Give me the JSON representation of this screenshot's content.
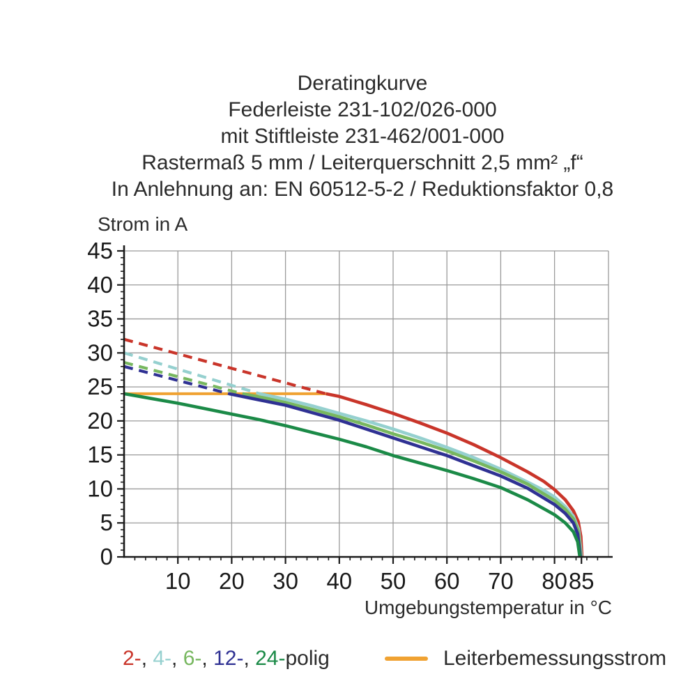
{
  "chart_data": {
    "type": "line",
    "title_lines": [
      "Deratingkurve",
      "Federleiste 231-102/026-000",
      "mit Stiftleiste 231-462/001-000",
      "Rastermaß 5 mm / Leiterquerschnitt 2,5 mm² „f“",
      "In Anlehnung an: EN 60512-5-2 / Reduktionsfaktor 0,8"
    ],
    "xlabel": "Umgebungstemperatur in °C",
    "ylabel": "Strom in A",
    "xlim": [
      0,
      90
    ],
    "ylim": [
      0,
      45
    ],
    "x_major_ticks": [
      10,
      20,
      30,
      40,
      50,
      60,
      70,
      80,
      85
    ],
    "x_gridlines": [
      10,
      20,
      30,
      40,
      50,
      60,
      70,
      80
    ],
    "x_minor_tick_step": 2,
    "y_major_ticks": [
      0,
      5,
      10,
      15,
      20,
      25,
      30,
      35,
      40,
      45
    ],
    "y_gridlines": [
      5,
      10,
      15,
      20,
      25,
      30,
      35,
      40
    ],
    "y_minor_tick_step": 1,
    "grid": true,
    "colors": {
      "grid": "#9a9a9a",
      "axis": "#1a1a1a",
      "tick_text": "#1a1a1a"
    },
    "reference_line": {
      "label": "Leiterbemessungsstrom",
      "color": "#f0a232",
      "value": 24,
      "x_start": 0,
      "x_end": 37.5
    },
    "series": [
      {
        "name": "2-polig",
        "legend_token": "2-",
        "color": "#c9352a",
        "dashed": [
          [
            0,
            32
          ],
          [
            37.5,
            24
          ]
        ],
        "solid": [
          [
            37.5,
            24
          ],
          [
            40,
            23.6
          ],
          [
            45,
            22.4
          ],
          [
            50,
            21.1
          ],
          [
            55,
            19.7
          ],
          [
            60,
            18.2
          ],
          [
            65,
            16.5
          ],
          [
            70,
            14.6
          ],
          [
            75,
            12.5
          ],
          [
            78,
            11.1
          ],
          [
            80,
            9.9
          ],
          [
            82,
            8.4
          ],
          [
            83.5,
            6.8
          ],
          [
            84.4,
            5.2
          ],
          [
            84.9,
            3
          ],
          [
            85.1,
            0
          ]
        ]
      },
      {
        "name": "4-polig",
        "legend_token": "4-",
        "color": "#95d0cf",
        "dashed": [
          [
            0,
            30
          ],
          [
            25.2,
            24
          ]
        ],
        "solid": [
          [
            25.2,
            24
          ],
          [
            30,
            23.2
          ],
          [
            35,
            22.2
          ],
          [
            40,
            21.1
          ],
          [
            45,
            20.0
          ],
          [
            50,
            18.8
          ],
          [
            55,
            17.5
          ],
          [
            60,
            16.1
          ],
          [
            65,
            14.6
          ],
          [
            70,
            12.9
          ],
          [
            75,
            11.0
          ],
          [
            78,
            9.8
          ],
          [
            80,
            8.8
          ],
          [
            82,
            7.4
          ],
          [
            83.5,
            6.0
          ],
          [
            84.5,
            4.0
          ],
          [
            85,
            0
          ]
        ]
      },
      {
        "name": "6-polig",
        "legend_token": "6-",
        "color": "#77b75f",
        "dashed": [
          [
            0,
            28.6
          ],
          [
            22,
            24
          ]
        ],
        "solid": [
          [
            22,
            24
          ],
          [
            26,
            23.4
          ],
          [
            30,
            22.7
          ],
          [
            35,
            21.7
          ],
          [
            40,
            20.6
          ],
          [
            45,
            19.4
          ],
          [
            50,
            18.1
          ],
          [
            55,
            16.9
          ],
          [
            60,
            15.6
          ],
          [
            65,
            14.1
          ],
          [
            70,
            12.5
          ],
          [
            75,
            10.7
          ],
          [
            80,
            8.3
          ],
          [
            82,
            7.0
          ],
          [
            83.5,
            5.6
          ],
          [
            84.4,
            3.8
          ],
          [
            84.9,
            0
          ]
        ]
      },
      {
        "name": "12-polig",
        "legend_token": "12-",
        "color": "#2f3193",
        "dashed": [
          [
            0,
            28
          ],
          [
            19.5,
            24
          ]
        ],
        "solid": [
          [
            19.5,
            24
          ],
          [
            25,
            23.1
          ],
          [
            30,
            22.3
          ],
          [
            35,
            21.2
          ],
          [
            40,
            20.1
          ],
          [
            45,
            18.8
          ],
          [
            50,
            17.5
          ],
          [
            55,
            16.2
          ],
          [
            60,
            14.9
          ],
          [
            65,
            13.4
          ],
          [
            70,
            11.9
          ],
          [
            75,
            10.1
          ],
          [
            80,
            7.7
          ],
          [
            82,
            6.4
          ],
          [
            83.5,
            5.0
          ],
          [
            84.3,
            3.4
          ],
          [
            84.8,
            0
          ]
        ]
      },
      {
        "name": "24-polig",
        "legend_token": "24-",
        "color": "#1b8a47",
        "dashed": [],
        "solid": [
          [
            0,
            24
          ],
          [
            5,
            23.3
          ],
          [
            10,
            22.6
          ],
          [
            15,
            21.8
          ],
          [
            20,
            21.0
          ],
          [
            25,
            20.2
          ],
          [
            30,
            19.3
          ],
          [
            35,
            18.3
          ],
          [
            40,
            17.3
          ],
          [
            45,
            16.2
          ],
          [
            50,
            14.9
          ],
          [
            55,
            13.8
          ],
          [
            60,
            12.7
          ],
          [
            65,
            11.5
          ],
          [
            70,
            10.2
          ],
          [
            75,
            8.4
          ],
          [
            80,
            6.2
          ],
          [
            82,
            5.0
          ],
          [
            83.5,
            3.7
          ],
          [
            84.3,
            2.2
          ],
          [
            84.7,
            0
          ]
        ]
      }
    ],
    "legend": {
      "separator": ", ",
      "suffix": "polig"
    }
  }
}
